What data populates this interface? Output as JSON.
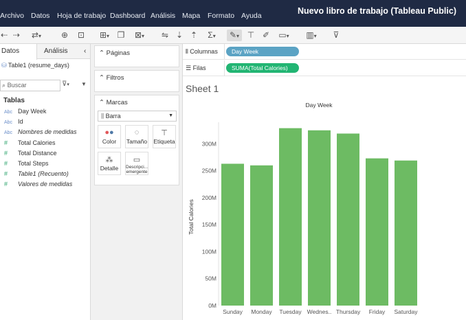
{
  "menubar": {
    "items": [
      "Archivo",
      "Datos",
      "Hoja de trabajo",
      "Dashboard",
      "Análisis",
      "Mapa",
      "Formato",
      "Ayuda"
    ],
    "window_title": "Nuevo libro de trabajo (Tableau Public)"
  },
  "left": {
    "tabs": [
      "Datos",
      "Análisis"
    ],
    "collapse_glyph": "‹",
    "datasource": "Table1 (resume_days)",
    "search_placeholder": "Buscar",
    "section_title": "Tablas",
    "fields": [
      {
        "badge": "Abc",
        "name": "Day Week",
        "italic": false,
        "kind": "dimension"
      },
      {
        "badge": "Abc",
        "name": "Id",
        "italic": false,
        "kind": "dimension"
      },
      {
        "badge": "Abc",
        "name": "Nombres de medidas",
        "italic": true,
        "kind": "dimension"
      },
      {
        "badge": "#",
        "name": "Total Calories",
        "italic": false,
        "kind": "measure"
      },
      {
        "badge": "#",
        "name": "Total Distance",
        "italic": false,
        "kind": "measure"
      },
      {
        "badge": "#",
        "name": "Total Steps",
        "italic": false,
        "kind": "measure"
      },
      {
        "badge": "#",
        "name": "Table1 (Recuento)",
        "italic": true,
        "kind": "measure"
      },
      {
        "badge": "#",
        "name": "Valores de medidas",
        "italic": true,
        "kind": "measure"
      }
    ]
  },
  "cards": {
    "pages_title": "Páginas",
    "filters_title": "Filtros",
    "marks_title": "Marcas",
    "mark_type": "Barra",
    "mark_buttons": [
      {
        "label": "Color",
        "icon": "color-dots-icon"
      },
      {
        "label": "Tamaño",
        "icon": "size-icon"
      },
      {
        "label": "Etiqueta",
        "icon": "label-icon"
      },
      {
        "label": "Detalle",
        "icon": "detail-icon"
      },
      {
        "label": "Descripci... emergente",
        "icon": "tooltip-icon"
      }
    ]
  },
  "shelves": {
    "columns_label": "Columnas",
    "rows_label": "Filas",
    "columns_pill": "Day Week",
    "rows_pill": "SUMA(Total Calories)",
    "columns_pill_color": "#5ba3c4",
    "rows_pill_color": "#22b573"
  },
  "sheet": {
    "title": "Sheet 1"
  },
  "chart_data": {
    "type": "bar",
    "title": "Day Week",
    "ylabel": "Total Calories",
    "xlabel": "",
    "categories": [
      "Sunday",
      "Monday",
      "Tuesday",
      "Wednes..",
      "Thursday",
      "Friday",
      "Saturday"
    ],
    "values": [
      263000000,
      260000000,
      329000000,
      325000000,
      319000000,
      273000000,
      269000000
    ],
    "ylim": [
      0,
      340000000
    ],
    "yticks": [
      0,
      50000000,
      100000000,
      150000000,
      200000000,
      250000000,
      300000000
    ],
    "ytick_labels": [
      "0M",
      "50M",
      "100M",
      "150M",
      "200M",
      "250M",
      "300M"
    ],
    "bar_color": "#6dbb63",
    "grid": false
  }
}
